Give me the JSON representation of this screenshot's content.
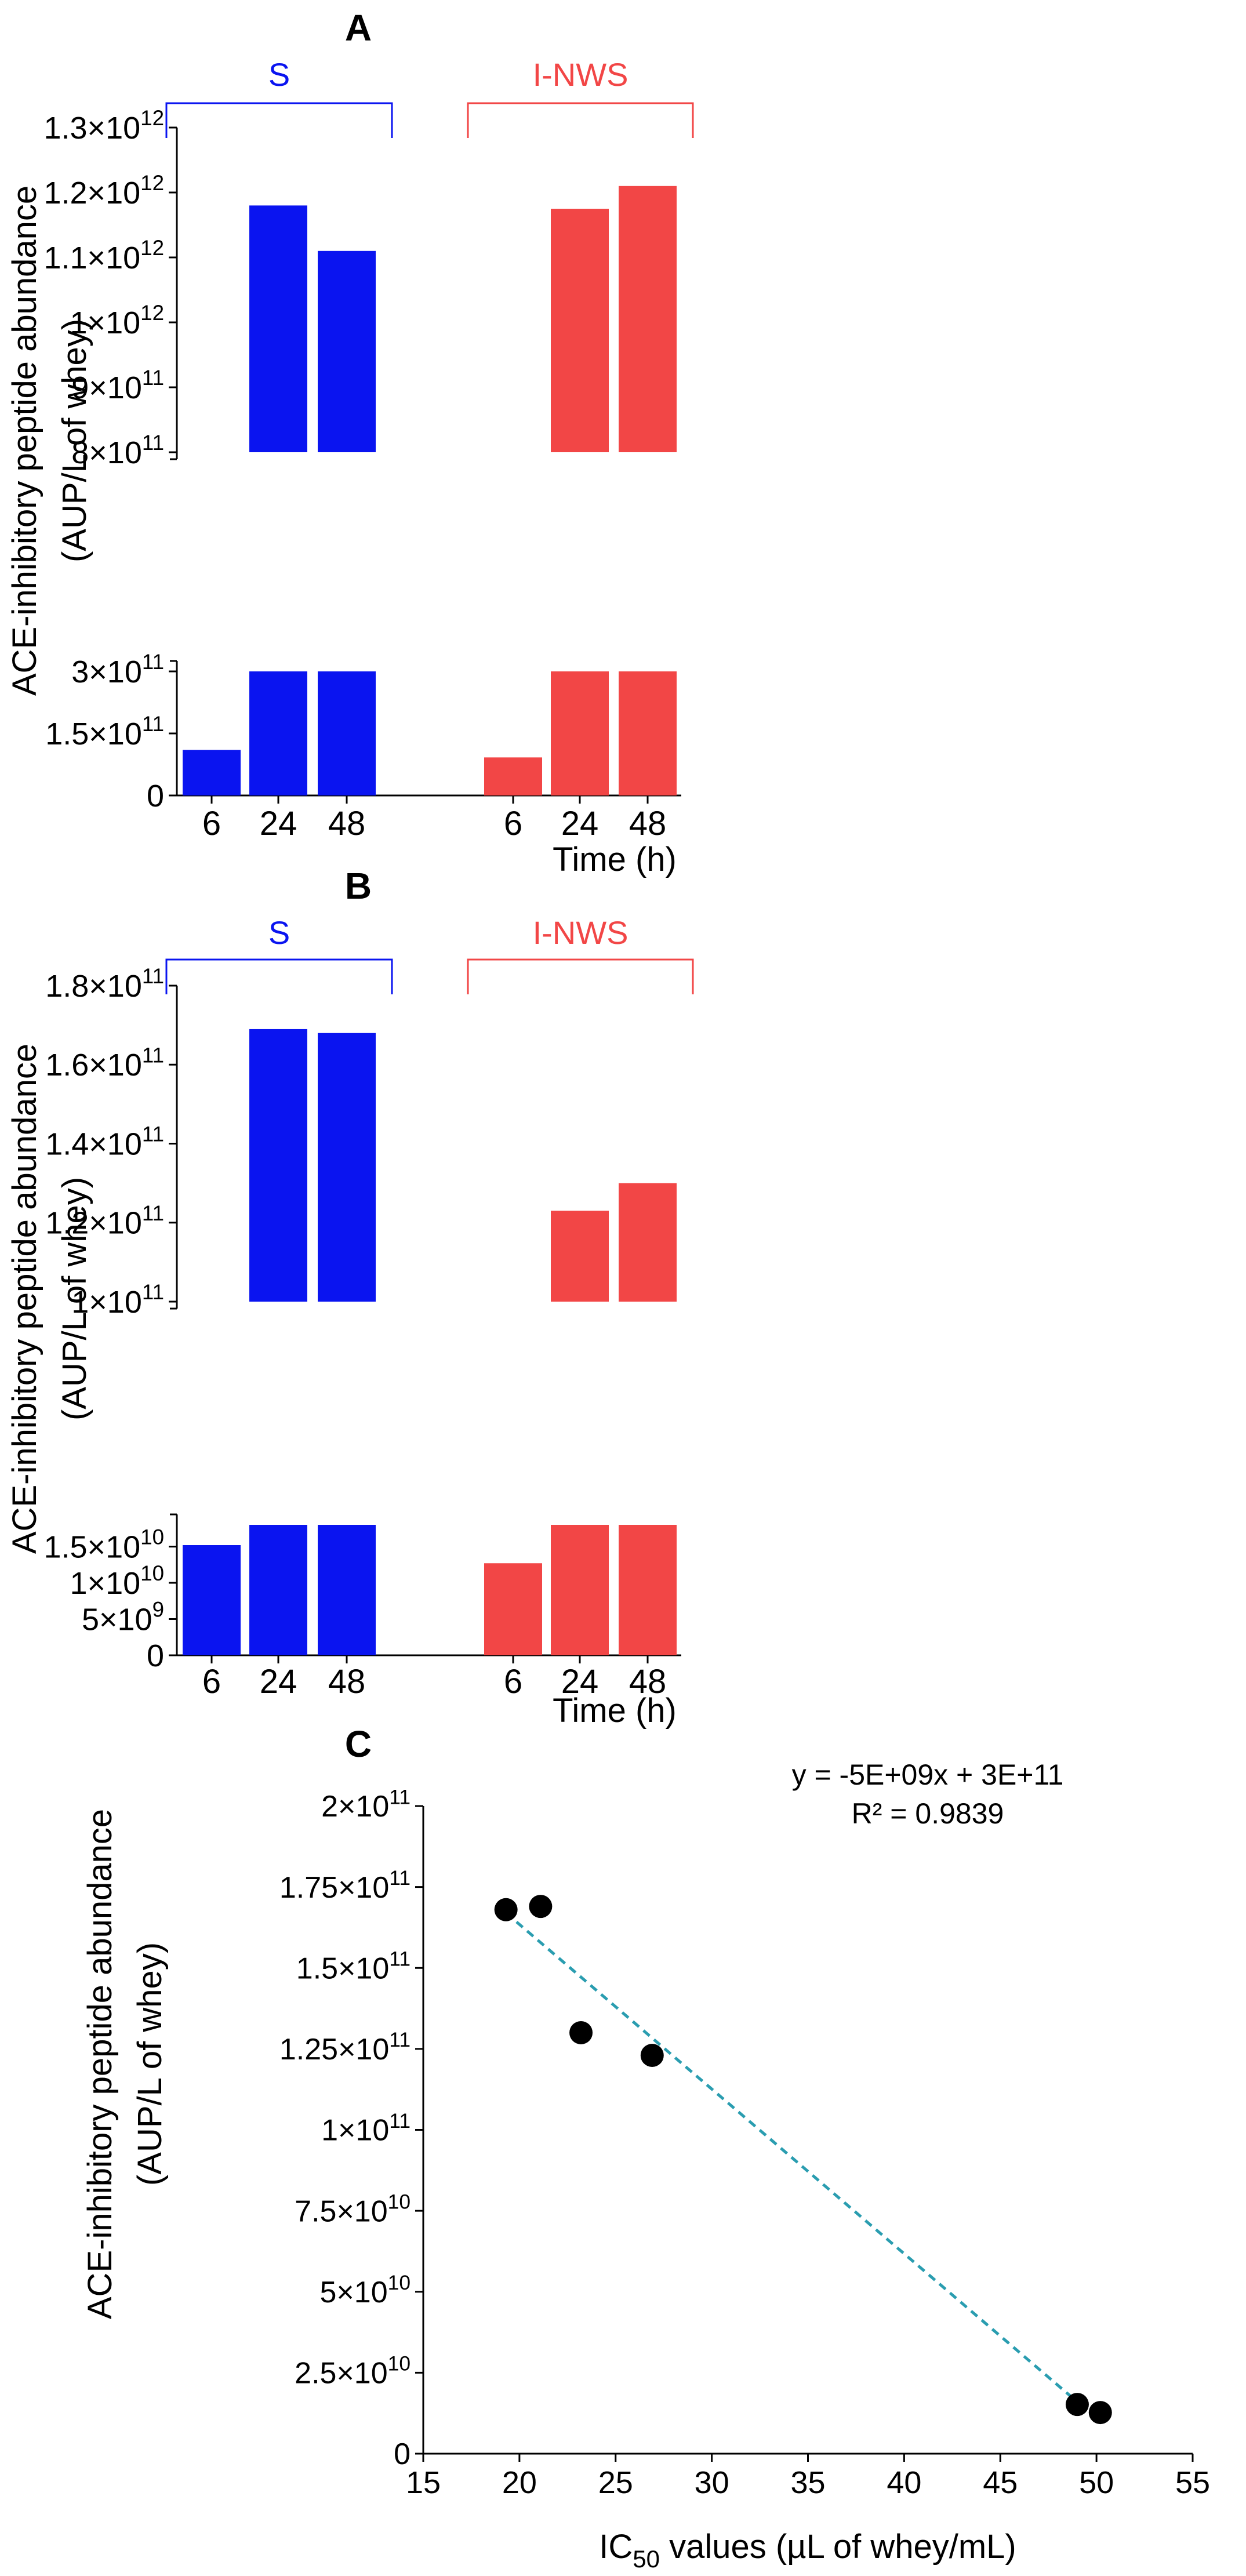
{
  "chart_data": [
    {
      "panel_label": "A",
      "type": "bar",
      "xlabel": "Time (h)",
      "ylabel_line1": "ACE-inhibitory peptide abundance",
      "ylabel_line2": "(AUP/L of whey)",
      "groups": [
        {
          "name": "S",
          "color": "#0a14f0",
          "categories": [
            "6",
            "24",
            "48"
          ],
          "values": [
            110000000000.0,
            1180000000000.0,
            1110000000000.0
          ]
        },
        {
          "name": "I-NWS",
          "color": "#f24646",
          "categories": [
            "6",
            "24",
            "48"
          ],
          "values": [
            92000000000.0,
            1175000000000.0,
            1210000000000.0
          ]
        }
      ],
      "axis_break": true,
      "lower_range": [
        0,
        300000000000.0
      ],
      "upper_range": [
        800000000000.0,
        1300000000000.0
      ],
      "lower_ticks": [
        {
          "value": 0,
          "mantissa": "0",
          "exp": ""
        },
        {
          "value": 150000000000.0,
          "mantissa": "1.5×10",
          "exp": "11"
        },
        {
          "value": 300000000000.0,
          "mantissa": "3×10",
          "exp": "11"
        }
      ],
      "upper_ticks": [
        {
          "value": 800000000000.0,
          "mantissa": "8×10",
          "exp": "11"
        },
        {
          "value": 900000000000.0,
          "mantissa": "9×10",
          "exp": "11"
        },
        {
          "value": 1000000000000.0,
          "mantissa": "1×10",
          "exp": "12"
        },
        {
          "value": 1100000000000.0,
          "mantissa": "1.1×10",
          "exp": "12"
        },
        {
          "value": 1200000000000.0,
          "mantissa": "1.2×10",
          "exp": "12"
        },
        {
          "value": 1300000000000.0,
          "mantissa": "1.3×10",
          "exp": "12"
        }
      ]
    },
    {
      "panel_label": "B",
      "type": "bar",
      "xlabel": "Time (h)",
      "ylabel_line1": "ACE-inhibitory peptide abundance",
      "ylabel_line2": "(AUP/L of whey)",
      "groups": [
        {
          "name": "S",
          "color": "#0a14f0",
          "categories": [
            "6",
            "24",
            "48"
          ],
          "values": [
            15200000000.0,
            169000000000.0,
            168000000000.0
          ]
        },
        {
          "name": "I-NWS",
          "color": "#f24646",
          "categories": [
            "6",
            "24",
            "48"
          ],
          "values": [
            12700000000.0,
            123000000000.0,
            130000000000.0
          ]
        }
      ],
      "axis_break": true,
      "lower_range": [
        0,
        18000000000.0
      ],
      "upper_range": [
        100000000000.0,
        180000000000.0
      ],
      "lower_ticks": [
        {
          "value": 0,
          "mantissa": "0",
          "exp": ""
        },
        {
          "value": 5000000000.0,
          "mantissa": "5×10",
          "exp": "9"
        },
        {
          "value": 10000000000.0,
          "mantissa": "1×10",
          "exp": "10"
        },
        {
          "value": 15000000000.0,
          "mantissa": "1.5×10",
          "exp": "10"
        }
      ],
      "upper_ticks": [
        {
          "value": 100000000000.0,
          "mantissa": "1×10",
          "exp": "11"
        },
        {
          "value": 120000000000.0,
          "mantissa": "1.2×10",
          "exp": "11"
        },
        {
          "value": 140000000000.0,
          "mantissa": "1.4×10",
          "exp": "11"
        },
        {
          "value": 160000000000.0,
          "mantissa": "1.6×10",
          "exp": "11"
        },
        {
          "value": 180000000000.0,
          "mantissa": "1.8×10",
          "exp": "11"
        }
      ]
    },
    {
      "panel_label": "C",
      "type": "scatter",
      "xlabel_main": "IC",
      "xlabel_sub": "50",
      "xlabel_rest": " values (µL of whey/mL)",
      "ylabel_line1": "ACE-inhibitory peptide abundance",
      "ylabel_line2": "(AUP/L of whey)",
      "xlim": [
        15,
        55
      ],
      "ylim": [
        0,
        200000000000.0
      ],
      "x_ticks": [
        "15",
        "20",
        "25",
        "30",
        "35",
        "40",
        "45",
        "50",
        "55"
      ],
      "y_ticks": [
        {
          "value": 0,
          "mantissa": "0",
          "exp": ""
        },
        {
          "value": 25000000000.0,
          "mantissa": "2.5×10",
          "exp": "10"
        },
        {
          "value": 50000000000.0,
          "mantissa": "5×10",
          "exp": "10"
        },
        {
          "value": 75000000000.0,
          "mantissa": "7.5×10",
          "exp": "10"
        },
        {
          "value": 100000000000.0,
          "mantissa": "1×10",
          "exp": "11"
        },
        {
          "value": 125000000000.0,
          "mantissa": "1.25×10",
          "exp": "11"
        },
        {
          "value": 150000000000.0,
          "mantissa": "1.5×10",
          "exp": "11"
        },
        {
          "value": 175000000000.0,
          "mantissa": "1.75×10",
          "exp": "11"
        },
        {
          "value": 200000000000.0,
          "mantissa": "2×10",
          "exp": "11"
        }
      ],
      "points": [
        {
          "x": 19.3,
          "y": 168000000000.0
        },
        {
          "x": 21.1,
          "y": 169000000000.0
        },
        {
          "x": 23.2,
          "y": 130000000000.0
        },
        {
          "x": 26.9,
          "y": 123000000000.0
        },
        {
          "x": 49.0,
          "y": 15200000000.0
        },
        {
          "x": 50.2,
          "y": 12700000000.0
        }
      ],
      "trendline": {
        "x_from": 19.3,
        "y_from": 167000000000.0,
        "x_to": 49.0,
        "y_to": 16000000000.0,
        "color": "#2a9db0",
        "style": "dashed"
      },
      "equation_text": "y = -5E+09x + 3E+11",
      "r2_text": "R² = 0.9839"
    }
  ]
}
